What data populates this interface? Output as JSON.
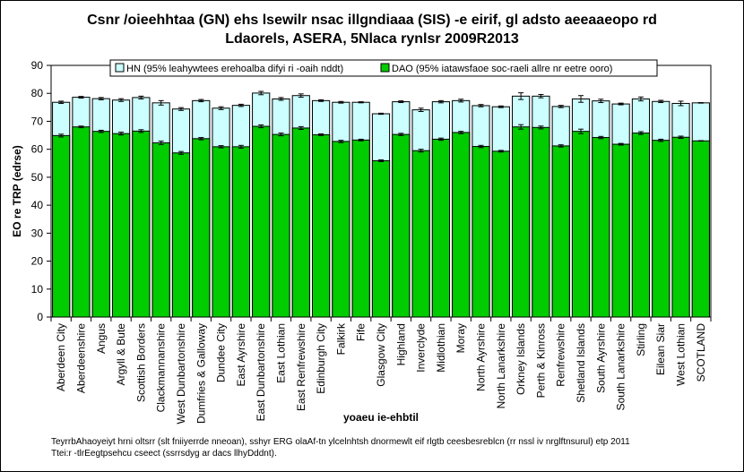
{
  "chart_data": {
    "type": "bar",
    "title_line1": "Csnr /oieehhtaa (GN) ehs lsewilr nsac illgndiaaa (SIS) -e eirif, gl adsto aeeaaeopo rd",
    "title_line2": "Ldaorels, ASERA, 5Nlaca rynlsr 2009R2013",
    "xlabel": "yoaeu ie-ehbtil",
    "ylabel": "EO re TRP (edrse)",
    "ylim": [
      0,
      90
    ],
    "yticks": [
      0,
      10,
      20,
      30,
      40,
      50,
      60,
      70,
      80,
      90
    ],
    "legend_position": "top",
    "grid": false,
    "categories": [
      "Aberdeen City",
      "Aberdeenshire",
      "Angus",
      "Argyll & Bute",
      "Scottish Borders",
      "Clackmannanshire",
      "West Dunbartonshire",
      "Dumfries & Galloway",
      "Dundee City",
      "East Ayrshire",
      "East Dunbartonshire",
      "East Lothian",
      "East Renfrewshire",
      "Edinburgh City",
      "Falkirk",
      "Fife",
      "Glasgow City",
      "Highland",
      "Inverclyde",
      "Midlothian",
      "Moray",
      "North Ayrshire",
      "North Lanarkshire",
      "Orkney Islands",
      "Perth & Kinross",
      "Renfrewshire",
      "Shetland Islands",
      "South Ayrshire",
      "South Lanarkshire",
      "Stirling",
      "Eilean Siar",
      "West Lothian",
      "SCOTLAND"
    ],
    "series": [
      {
        "name": "HN (95% leahywtees erehoalba difyi ri -oaih nddt)",
        "color": "#ccffff",
        "values": [
          76.8,
          78.6,
          78.1,
          77.6,
          78.5,
          76.6,
          74.4,
          77.4,
          74.7,
          75.7,
          80.1,
          78.0,
          79.2,
          77.4,
          76.8,
          76.8,
          72.7,
          77.0,
          74.1,
          77.0,
          77.4,
          75.6,
          75.2,
          79.0,
          79.0,
          75.3,
          78.0,
          77.3,
          76.2,
          78.0,
          77.1,
          76.4,
          76.6
        ],
        "ci": [
          0.4,
          0.3,
          0.4,
          0.5,
          0.5,
          0.8,
          0.5,
          0.4,
          0.5,
          0.4,
          0.6,
          0.5,
          0.6,
          0.3,
          0.3,
          0.2,
          0.2,
          0.3,
          0.6,
          0.4,
          0.5,
          0.4,
          0.3,
          1.2,
          0.6,
          0.4,
          1.2,
          0.6,
          0.3,
          0.7,
          0.4,
          0.8,
          0.1
        ]
      },
      {
        "name": "DAO (95% iatawsfaoe soc-raeli allre nr eetre ooro)",
        "color": "#00cc00",
        "values": [
          64.9,
          68.0,
          66.4,
          65.6,
          66.5,
          62.3,
          58.7,
          63.8,
          60.9,
          60.9,
          68.2,
          65.3,
          67.6,
          65.2,
          62.8,
          63.3,
          55.9,
          65.3,
          59.5,
          63.6,
          66.0,
          61.0,
          59.3,
          68.0,
          67.8,
          61.2,
          66.4,
          64.2,
          61.8,
          65.8,
          63.2,
          64.3,
          63.0
        ],
        "ci": [
          0.5,
          0.3,
          0.4,
          0.5,
          0.5,
          0.6,
          0.5,
          0.4,
          0.4,
          0.5,
          0.5,
          0.5,
          0.5,
          0.3,
          0.4,
          0.3,
          0.3,
          0.4,
          0.5,
          0.4,
          0.4,
          0.4,
          0.3,
          0.8,
          0.5,
          0.4,
          0.8,
          0.4,
          0.3,
          0.5,
          0.4,
          0.4,
          0.1
        ]
      }
    ]
  },
  "source_line1": "TeyrrbAhaoyeiyt hrni oltsrr (slt fniiyerrde nneoan), sshyr ERG olaAf-tn ylcelnhtsh dnormewlt eif rlgtb ceesbesreblcn (rr nssl iv nrglftnsurul) etp 2011",
  "source_line2": "Ttei:r -tlrEegtpsehcu cseect (ssrrsdyg ar dacs llhyDddnt)."
}
